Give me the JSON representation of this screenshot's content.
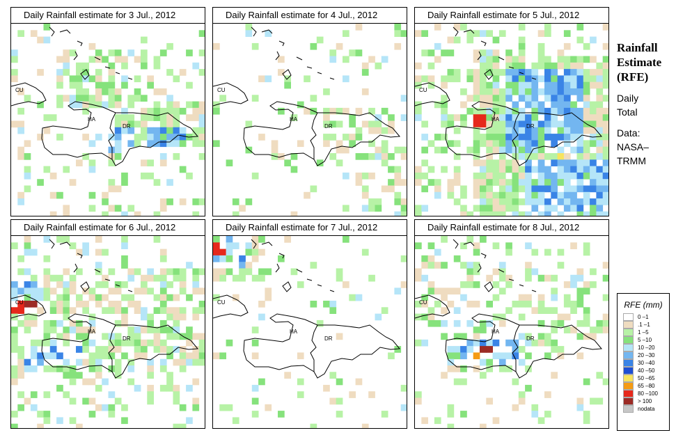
{
  "panels": [
    {
      "title": "Daily Rainfall estimate for  3 Jul., 2012"
    },
    {
      "title": "Daily Rainfall estimate for  4 Jul., 2012"
    },
    {
      "title": "Daily Rainfall estimate for  5 Jul., 2012"
    },
    {
      "title": "Daily Rainfall estimate for  6 Jul., 2012"
    },
    {
      "title": "Daily Rainfall estimate for  7 Jul., 2012"
    },
    {
      "title": "Daily Rainfall estimate for  8 Jul., 2012"
    }
  ],
  "map_labels": {
    "cu": "CU",
    "ha": "HA",
    "dr": "DR"
  },
  "side": {
    "title_line1": "Rainfall",
    "title_line2": "Estimate",
    "title_line3": "(RFE)",
    "daily_line1": "Daily",
    "daily_line2": "Total",
    "data_line1": "Data:",
    "data_line2": "NASA–",
    "data_line3": "TRMM"
  },
  "legend": {
    "title": "RFE (mm)",
    "items": [
      {
        "label": "0 –1",
        "color": "#ffffff"
      },
      {
        "label": ".1 –1",
        "color": "#efdcc0"
      },
      {
        "label": "1 –5",
        "color": "#b7f2a6"
      },
      {
        "label": "5 –10",
        "color": "#86e27c"
      },
      {
        "label": "10 –20",
        "color": "#b5e5f8"
      },
      {
        "label": "20 –30",
        "color": "#73b6f0"
      },
      {
        "label": "30 –40",
        "color": "#3a84e6"
      },
      {
        "label": "40 –50",
        "color": "#1d4fd3"
      },
      {
        "label": "50 –65",
        "color": "#f7e45e"
      },
      {
        "label": "65 –80",
        "color": "#f59b14"
      },
      {
        "label": "80 –100",
        "color": "#e6281b"
      },
      {
        "label": "> 100",
        "color": "#9c2b25"
      },
      {
        "label": "nodata",
        "color": "#c7c7c7"
      }
    ]
  }
}
